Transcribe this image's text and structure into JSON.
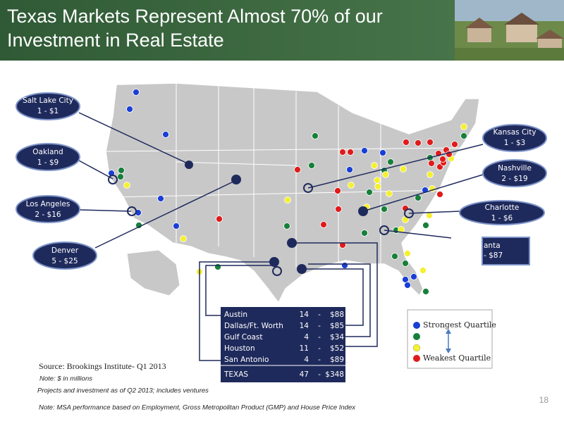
{
  "header": {
    "title_lines": [
      "Texas Markets Represent Almost 70% of our",
      "Investment in Real Estate"
    ]
  },
  "callouts": [
    {
      "name": "Salt Lake City",
      "detail": "1 - $1"
    },
    {
      "name": "Oakland",
      "detail": "1 - $9"
    },
    {
      "name": "Los Angeles",
      "detail": "2 - $16"
    },
    {
      "name": "Denver",
      "detail": "5 - $25"
    },
    {
      "name": "Kansas City",
      "detail": "1 - $3"
    },
    {
      "name": "Nashville",
      "detail": "2 - $19"
    },
    {
      "name": "Charlotte",
      "detail": "1 - $6"
    },
    {
      "name": "anta",
      "detail": "- $87"
    }
  ],
  "table": {
    "rows": [
      [
        "Austin",
        "14",
        "-",
        "$88"
      ],
      [
        "Dallas/Ft. Worth",
        "14",
        "-",
        "$85"
      ],
      [
        "Gulf Coast",
        "4",
        "-",
        "$34"
      ],
      [
        "Houston",
        "11",
        "-",
        "$52"
      ],
      [
        "San Antonio",
        "4",
        "-",
        "$89"
      ]
    ],
    "total": [
      "TEXAS",
      "47",
      "-",
      "$348"
    ]
  },
  "legend": {
    "top": "Strongest Quartile",
    "bottom": "Weakest Quartile"
  },
  "notes": {
    "source": "Source:  Brookings Institute- Q1 2013",
    "units": "Note: $ in millions",
    "projects": "Projects and investment as of Q2 2013; includes ventures",
    "msa": "Note: MSA performance based on Employment, Gross Metropolitan Product (GMP) and House Price Index"
  },
  "page_number": "18"
}
